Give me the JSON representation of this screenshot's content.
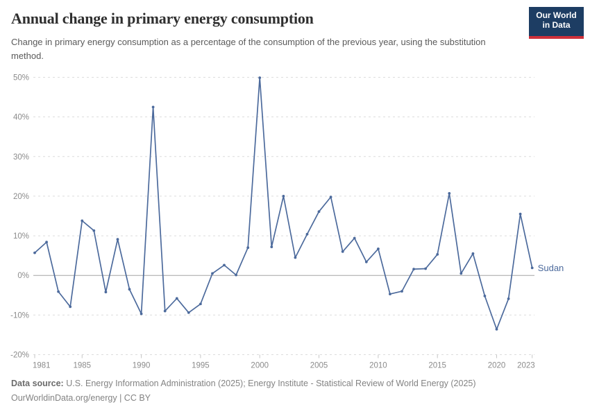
{
  "header": {
    "title": "Annual change in primary energy consumption",
    "subtitle": "Change in primary energy consumption as a percentage of the consumption of the previous year, using the substitution method.",
    "logo": {
      "line1": "Our World",
      "line2": "in Data"
    }
  },
  "chart_data": {
    "type": "line",
    "title": "Annual change in primary energy consumption",
    "entity_label": "Sudan",
    "unit": "%",
    "x": [
      1981,
      1982,
      1983,
      1984,
      1985,
      1986,
      1987,
      1988,
      1989,
      1990,
      1991,
      1992,
      1993,
      1994,
      1995,
      1996,
      1997,
      1998,
      1999,
      2000,
      2001,
      2002,
      2003,
      2004,
      2005,
      2006,
      2007,
      2008,
      2009,
      2010,
      2011,
      2012,
      2013,
      2014,
      2015,
      2016,
      2017,
      2018,
      2019,
      2020,
      2021,
      2022,
      2023
    ],
    "series": [
      {
        "name": "Sudan",
        "values": [
          5.7,
          8.4,
          -4.1,
          -7.9,
          13.8,
          11.3,
          -4.2,
          9.1,
          -3.5,
          -9.7,
          42.5,
          -9.0,
          -5.8,
          -9.4,
          -7.2,
          0.5,
          2.6,
          0.1,
          7.0,
          49.9,
          7.2,
          20.0,
          4.5,
          10.4,
          16.1,
          19.8,
          6.0,
          9.4,
          3.4,
          6.7,
          -4.7,
          -4.0,
          1.6,
          1.7,
          5.3,
          20.7,
          0.5,
          5.5,
          -5.2,
          -13.6,
          -5.9,
          15.5,
          1.9
        ]
      }
    ],
    "ylim": [
      -20,
      50
    ],
    "yticks": [
      50,
      40,
      30,
      20,
      10,
      0,
      -10,
      -20
    ],
    "ytick_labels": [
      "50%",
      "40%",
      "30%",
      "20%",
      "10%",
      "0%",
      "-10%",
      "-20%"
    ],
    "xticks": [
      1981,
      1985,
      1990,
      1995,
      2000,
      2005,
      2010,
      2015,
      2020,
      2023
    ],
    "grid": "horizontal-dashed",
    "legend_position": "line-end-label",
    "colors": {
      "line": "#4c6a9c",
      "grid": "#dcdcdc",
      "zero_line": "#a3a3a3",
      "tick_label": "#8b8b8b",
      "axis_tick": "#c6c6c6"
    }
  },
  "footer": {
    "datasource_label": "Data source:",
    "datasource_text": " U.S. Energy Information Administration (2025); Energy Institute - Statistical Review of World Energy (2025)",
    "credit": "OurWorldinData.org/energy | CC BY"
  }
}
